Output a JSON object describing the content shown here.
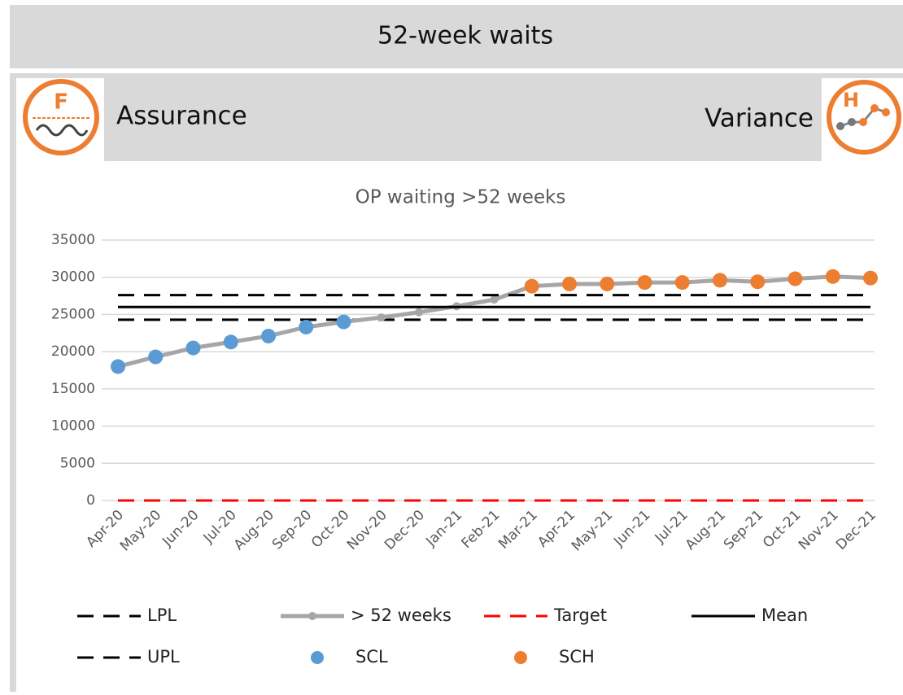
{
  "header": {
    "title": "52-week waits"
  },
  "panel": {
    "left_icon": "F",
    "left_label": "Assurance",
    "right_label": "Variance",
    "right_icon": "H"
  },
  "chart_data": {
    "type": "line",
    "title": "OP waiting >52 weeks",
    "categories": [
      "Apr-20",
      "May-20",
      "Jun-20",
      "Jul-20",
      "Aug-20",
      "Sep-20",
      "Oct-20",
      "Nov-20",
      "Dec-20",
      "Jan-21",
      "Feb-21",
      "Mar-21",
      "Apr-21",
      "May-21",
      "Jun-21",
      "Jul-21",
      "Aug-21",
      "Sep-21",
      "Oct-21",
      "Nov-21",
      "Dec-21"
    ],
    "ylim": [
      0,
      35000
    ],
    "yticks": [
      0,
      5000,
      10000,
      15000,
      20000,
      25000,
      30000,
      35000
    ],
    "grid": true,
    "series": [
      {
        "name": "LPL",
        "color": "#000000",
        "dash": true,
        "values": [
          24300,
          24300,
          24300,
          24300,
          24300,
          24300,
          24300,
          24300,
          24300,
          24300,
          24300,
          24300,
          24300,
          24300,
          24300,
          24300,
          24300,
          24300,
          24300,
          24300,
          24300
        ]
      },
      {
        "name": "> 52 weeks",
        "color": "#a6a6a6",
        "marker": true,
        "values": [
          18000,
          19300,
          20500,
          21300,
          22100,
          23300,
          24000,
          24600,
          25300,
          26100,
          27000,
          28800,
          29100,
          29100,
          29300,
          29300,
          29600,
          29400,
          29800,
          30100,
          29900
        ]
      },
      {
        "name": "Target",
        "color": "#ff0000",
        "dash": true,
        "values": [
          0,
          0,
          0,
          0,
          0,
          0,
          0,
          0,
          0,
          0,
          0,
          0,
          0,
          0,
          0,
          0,
          0,
          0,
          0,
          0,
          0
        ]
      },
      {
        "name": "Mean",
        "color": "#000000",
        "values": [
          26000,
          26000,
          26000,
          26000,
          26000,
          26000,
          26000,
          26000,
          26000,
          26000,
          26000,
          26000,
          26000,
          26000,
          26000,
          26000,
          26000,
          26000,
          26000,
          26000,
          26000
        ]
      },
      {
        "name": "UPL",
        "color": "#000000",
        "dash": true,
        "values": [
          27600,
          27600,
          27600,
          27600,
          27600,
          27600,
          27600,
          27600,
          27600,
          27600,
          27600,
          27600,
          27600,
          27600,
          27600,
          27600,
          27600,
          27600,
          27600,
          27600,
          27600
        ]
      },
      {
        "name": "SCL",
        "color": "#5b9bd5",
        "dots": true,
        "values": [
          18000,
          19300,
          20500,
          21300,
          22100,
          23300,
          24000,
          null,
          null,
          null,
          null,
          null,
          null,
          null,
          null,
          null,
          null,
          null,
          null,
          null,
          null
        ]
      },
      {
        "name": "SCH",
        "color": "#ed7d31",
        "dots": true,
        "values": [
          null,
          null,
          null,
          null,
          null,
          null,
          null,
          null,
          null,
          null,
          null,
          28800,
          29100,
          29100,
          29300,
          29300,
          29600,
          29400,
          29800,
          30100,
          29900
        ]
      }
    ]
  }
}
